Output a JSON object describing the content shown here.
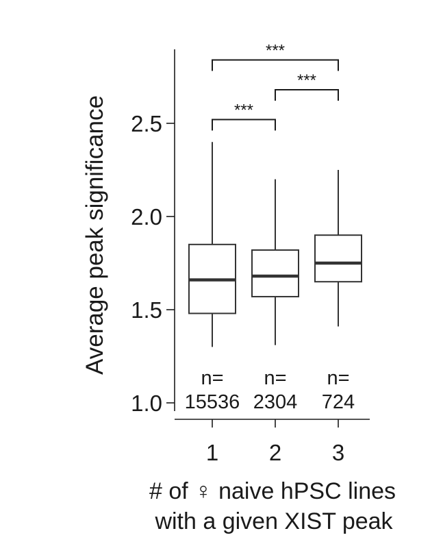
{
  "chart_data": {
    "type": "box",
    "ylabel": "Average peak significance",
    "xlabel_line1": "# of ♀ naive hPSC lines",
    "xlabel_line2": "with a given XIST peak",
    "ylim": [
      1.0,
      2.85
    ],
    "yticks": [
      1.0,
      1.5,
      2.0,
      2.5
    ],
    "ytick_labels": [
      "1.0",
      "1.5",
      "2.0",
      "2.5"
    ],
    "categories": [
      "1",
      "2",
      "3"
    ],
    "boxes": [
      {
        "category": "1",
        "whisker_low": 1.3,
        "q1": 1.48,
        "median": 1.66,
        "q3": 1.85,
        "whisker_high": 2.4,
        "n_label": "n=",
        "n_value": "15536"
      },
      {
        "category": "2",
        "whisker_low": 1.31,
        "q1": 1.57,
        "median": 1.68,
        "q3": 1.82,
        "whisker_high": 2.2,
        "n_label": "n=",
        "n_value": "2304"
      },
      {
        "category": "3",
        "whisker_low": 1.41,
        "q1": 1.65,
        "median": 1.75,
        "q3": 1.9,
        "whisker_high": 2.25,
        "n_label": "n=",
        "n_value": "724"
      }
    ],
    "significance": [
      {
        "from": "1",
        "to": "2",
        "y": 2.52,
        "label": "***"
      },
      {
        "from": "2",
        "to": "3",
        "y": 2.68,
        "label": "***"
      },
      {
        "from": "1",
        "to": "3",
        "y": 2.84,
        "label": "***"
      }
    ],
    "colors": {
      "box_edge": "#333333",
      "median": "#333333",
      "axis": "#1a1a1a"
    }
  }
}
